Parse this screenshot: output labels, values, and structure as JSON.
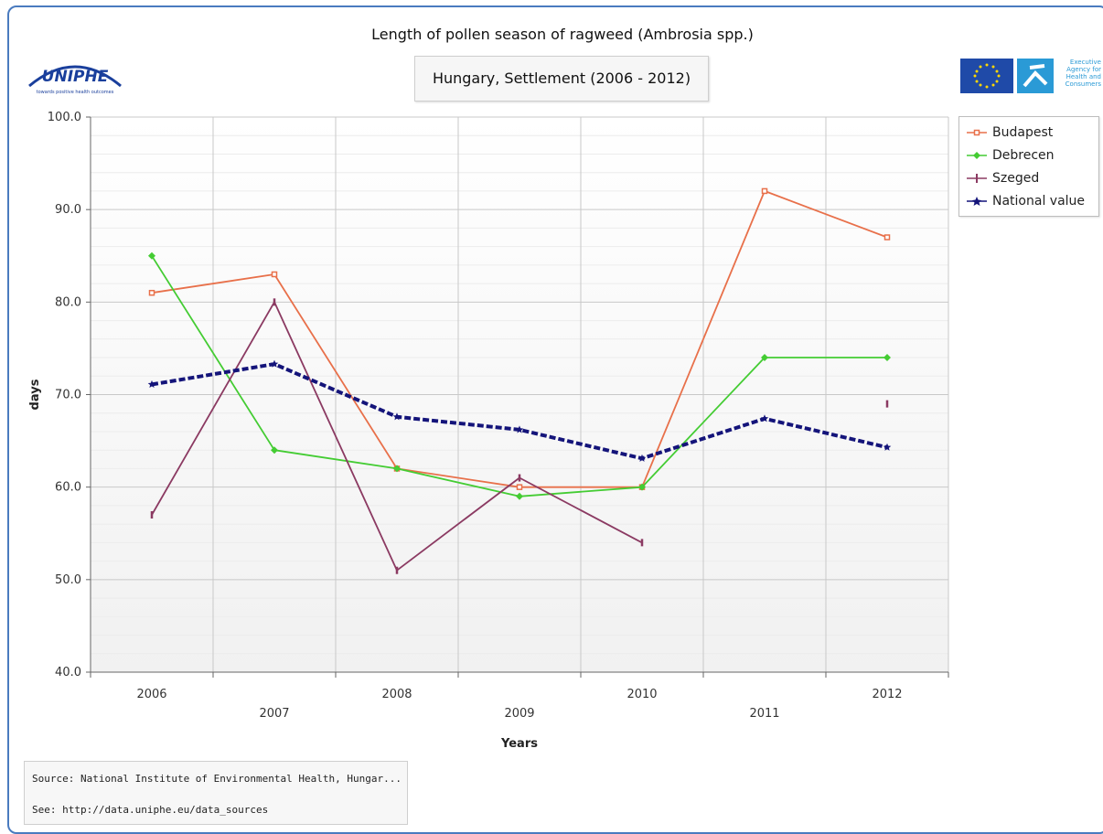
{
  "header": {
    "title": "Length of pollen season of ragweed (Ambrosia spp.)",
    "subtitle": "Hungary, Settlement (2006 - 2012)",
    "logo_left": {
      "text": "UNIPHE",
      "tagline": "towards positive health outcomes"
    },
    "logo_right": {
      "text": "Executive Agency for Health and Consumers"
    }
  },
  "source": {
    "line1": "Source: National Institute of Environmental Health, Hungar...",
    "line2": "See: http://data.uniphe.eu/data_sources"
  },
  "colors": {
    "budapest": "#e8704a",
    "debrecen": "#44cc33",
    "szeged": "#8b3a62",
    "national": "#14147a",
    "grid": "#d6d6d6",
    "frame": "#4a7bbf"
  },
  "chart_data": {
    "type": "line",
    "title": "Length of pollen season of ragweed (Ambrosia spp.)",
    "subtitle": "Hungary, Settlement (2006 - 2012)",
    "xlabel": "Years",
    "ylabel": "days",
    "x": [
      "2006",
      "2007",
      "2008",
      "2009",
      "2010",
      "2011",
      "2012"
    ],
    "ylim": [
      40,
      100
    ],
    "yticks": [
      "40.0",
      "50.0",
      "60.0",
      "70.0",
      "80.0",
      "90.0",
      "100.0"
    ],
    "grid": true,
    "legend_position": "right",
    "series": [
      {
        "name": "Budapest",
        "values": [
          81,
          83,
          62,
          60,
          60,
          92,
          87
        ],
        "color": "#e8704a",
        "marker": "square"
      },
      {
        "name": "Debrecen",
        "values": [
          85,
          64,
          62,
          59,
          60,
          74,
          74
        ],
        "color": "#44cc33",
        "marker": "diamond"
      },
      {
        "name": "Szeged",
        "values": [
          57,
          80,
          51,
          61,
          54,
          null,
          69
        ],
        "color": "#8b3a62",
        "marker": "dash"
      },
      {
        "name": "National value",
        "values": [
          71.1,
          73.3,
          67.6,
          66.2,
          63.1,
          67.4,
          64.3
        ],
        "color": "#14147a",
        "marker": "star",
        "dashed": true
      }
    ]
  }
}
